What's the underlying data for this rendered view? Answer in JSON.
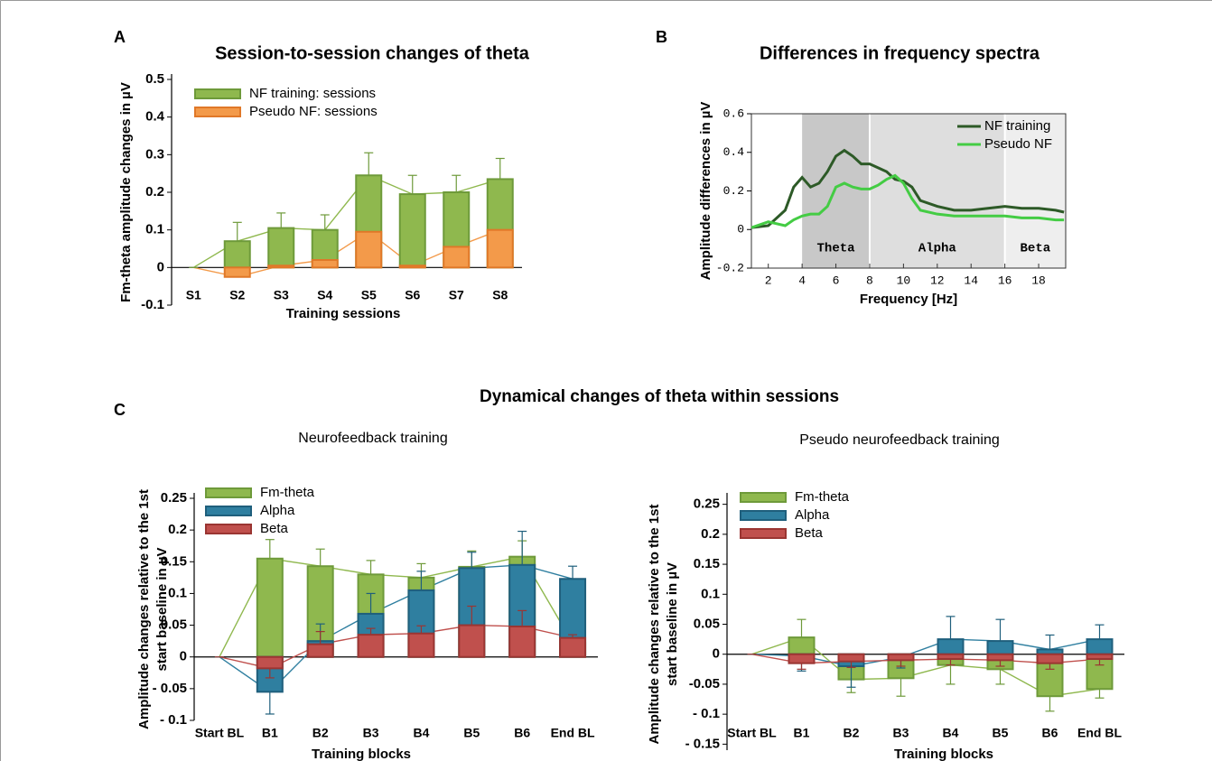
{
  "chart_data": [
    {
      "panel": "A",
      "title": "Session-to-session changes of theta",
      "type": "bar",
      "categories": [
        "S1",
        "S2",
        "S3",
        "S4",
        "S5",
        "S6",
        "S7",
        "S8"
      ],
      "series": [
        {
          "name": "NF training: sessions",
          "color": "#8fb84e",
          "edgecolor": "#6e9a3a",
          "values": [
            0,
            0.07,
            0.105,
            0.1,
            0.245,
            0.195,
            0.2,
            0.235
          ],
          "errors": [
            0,
            0.05,
            0.04,
            0.04,
            0.06,
            0.05,
            0.045,
            0.055
          ]
        },
        {
          "name": "Pseudo NF: sessions",
          "color": "#f39a4a",
          "edgecolor": "#e07828",
          "values": [
            0,
            -0.025,
            0.005,
            0.02,
            0.095,
            0.005,
            0.055,
            0.1
          ]
        }
      ],
      "ylim": [
        -0.1,
        0.5
      ],
      "yticks": [
        -0.1,
        0,
        0.1,
        0.2,
        0.3,
        0.4,
        0.5
      ],
      "xlabel": "Training sessions",
      "ylabel": [
        "Fm-theta amplitude changes in µV"
      ],
      "grid": false
    },
    {
      "panel": "B",
      "title": "Differences in frequency spectra",
      "type": "line",
      "x": [
        1,
        2,
        3,
        3.5,
        4,
        4.5,
        5,
        5.5,
        6,
        6.5,
        7,
        7.5,
        8,
        8.5,
        9,
        9.5,
        10,
        10.5,
        11,
        12,
        13,
        14,
        15,
        16,
        17,
        18,
        19,
        19.5
      ],
      "series": [
        {
          "name": "NF training",
          "color": "#2d5a27",
          "values": [
            0.01,
            0.02,
            0.1,
            0.22,
            0.27,
            0.22,
            0.24,
            0.3,
            0.38,
            0.41,
            0.38,
            0.34,
            0.34,
            0.32,
            0.3,
            0.26,
            0.25,
            0.22,
            0.15,
            0.12,
            0.1,
            0.1,
            0.11,
            0.12,
            0.11,
            0.11,
            0.1,
            0.09
          ]
        },
        {
          "name": "Pseudo NF",
          "color": "#44cc44",
          "values": [
            0.01,
            0.04,
            0.02,
            0.05,
            0.07,
            0.08,
            0.08,
            0.12,
            0.22,
            0.24,
            0.22,
            0.21,
            0.21,
            0.23,
            0.26,
            0.28,
            0.24,
            0.16,
            0.1,
            0.08,
            0.07,
            0.07,
            0.07,
            0.07,
            0.06,
            0.06,
            0.05,
            0.05
          ]
        }
      ],
      "bands": [
        {
          "label": "Theta",
          "from": 4,
          "to": 8,
          "color": "#c8c8c8"
        },
        {
          "label": "Alpha",
          "from": 8,
          "to": 16,
          "color": "#dedede"
        },
        {
          "label": "Beta",
          "from": 16,
          "to": 19.6,
          "color": "#eeeeee"
        }
      ],
      "xlim": [
        1,
        19.6
      ],
      "xticks": [
        2,
        4,
        6,
        8,
        10,
        12,
        14,
        16,
        18
      ],
      "ylim": [
        -0.2,
        0.6
      ],
      "yticks": [
        -0.2,
        0,
        0.2,
        0.4,
        0.6
      ],
      "xlabel": "Frequency [Hz]",
      "ylabel": [
        "Amplitude  differences  in µV"
      ],
      "grid": false
    },
    {
      "panel": "C",
      "section_title": "Dynamical changes of theta within sessions",
      "subtitle": "Neurofeedback training",
      "type": "bar",
      "categories": [
        "Start BL",
        "B1",
        "B2",
        "B3",
        "B4",
        "B5",
        "B6",
        "End BL"
      ],
      "series": [
        {
          "name": "Fm-theta",
          "color": "#8fb84e",
          "edgecolor": "#6e9a3a",
          "values": [
            0,
            0.155,
            0.143,
            0.13,
            0.125,
            0.142,
            0.158,
            0.022
          ],
          "errors": [
            0,
            0.03,
            0.027,
            0.022,
            0.022,
            0.025,
            0.025,
            0.015
          ]
        },
        {
          "name": "Alpha",
          "color": "#2f7fa0",
          "edgecolor": "#1f5f7c",
          "values": [
            0,
            -0.055,
            0.025,
            0.068,
            0.105,
            0.14,
            0.145,
            0.123
          ],
          "errors": [
            0,
            0.035,
            0.027,
            0.032,
            0.03,
            0.025,
            0.053,
            0.02
          ]
        },
        {
          "name": "Beta",
          "color": "#c0504d",
          "edgecolor": "#9a3532",
          "values": [
            0,
            -0.018,
            0.02,
            0.035,
            0.037,
            0.05,
            0.048,
            0.03
          ],
          "errors": [
            0,
            0.015,
            0.02,
            0.01,
            0.012,
            0.03,
            0.025,
            0.005
          ]
        }
      ],
      "ylim": [
        -0.1,
        0.25
      ],
      "yticks": [
        {
          "value": -0.1,
          "label": "- 0.1"
        },
        {
          "value": -0.05,
          "label": "- 0.05"
        },
        0,
        0.05,
        0.1,
        0.15,
        0.2,
        0.25
      ],
      "xlabel": "Training blocks",
      "ylabel": [
        "Amplitude changes relative to the 1st",
        "start baseline in µV"
      ],
      "grid": false
    },
    {
      "subtitle": "Pseudo neurofeedback training",
      "type": "bar",
      "categories": [
        "Start BL",
        "B1",
        "B2",
        "B3",
        "B4",
        "B5",
        "B6",
        "End BL"
      ],
      "series": [
        {
          "name": "Fm-theta",
          "color": "#8fb84e",
          "edgecolor": "#6e9a3a",
          "values": [
            0,
            0.028,
            -0.042,
            -0.04,
            -0.018,
            -0.025,
            -0.07,
            -0.058
          ],
          "errors": [
            0,
            0.03,
            0.022,
            0.03,
            0.032,
            0.025,
            0.025,
            0.015
          ]
        },
        {
          "name": "Alpha",
          "color": "#2f7fa0",
          "edgecolor": "#1f5f7c",
          "values": [
            0,
            -0.003,
            -0.02,
            -0.005,
            0.025,
            0.022,
            0.008,
            0.025
          ],
          "errors": [
            0,
            0.025,
            0.035,
            0.018,
            0.038,
            0.036,
            0.024,
            0.024
          ]
        },
        {
          "name": "Beta",
          "color": "#c0504d",
          "edgecolor": "#9a3532",
          "values": [
            0,
            -0.015,
            -0.012,
            -0.01,
            -0.008,
            -0.01,
            -0.015,
            -0.008
          ],
          "errors": [
            0,
            0.01,
            0.01,
            0.01,
            0.01,
            0.01,
            0.01,
            0.01
          ]
        }
      ],
      "ylim": [
        -0.16,
        0.26
      ],
      "yticks": [
        {
          "value": -0.15,
          "label": "- 0.15"
        },
        {
          "value": -0.1,
          "label": "- 0.1"
        },
        -0.05,
        0,
        0.05,
        0.1,
        0.15,
        0.2,
        0.25
      ],
      "xlabel": "Training blocks",
      "ylabel": [
        "Amplitude changes relative to the 1st",
        "start baseline in µV"
      ],
      "grid": false
    }
  ]
}
